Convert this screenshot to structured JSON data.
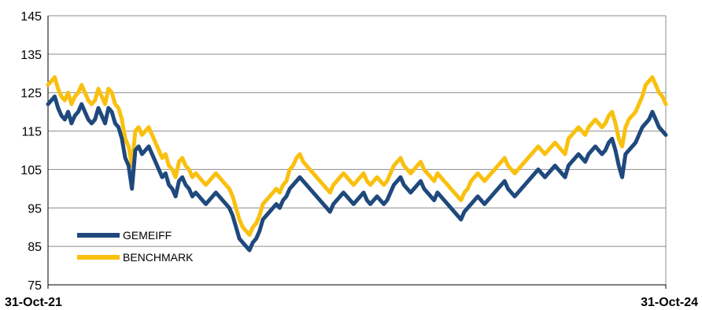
{
  "chart_data": {
    "type": "line",
    "x_start": "31-Oct-21",
    "x_end": "31-Oct-24",
    "x_tick_labels": [
      "31-Oct-21",
      "31-Oct-24"
    ],
    "ylim": [
      75,
      145
    ],
    "y_ticks": [
      75,
      85,
      95,
      105,
      115,
      125,
      135,
      145
    ],
    "grid": true,
    "legend_placement": "bottom-left",
    "series": [
      {
        "name": "GEMEIFF",
        "color": "#1f497d",
        "values": [
          122,
          123,
          124,
          121,
          119,
          118,
          120,
          117,
          119,
          120,
          122,
          120,
          118,
          117,
          118,
          121,
          119,
          117,
          121,
          120,
          117,
          116,
          113,
          108,
          106,
          100,
          110,
          111,
          109,
          110,
          111,
          109,
          107,
          105,
          103,
          104,
          101,
          100,
          98,
          102,
          103,
          101,
          100,
          98,
          99,
          98,
          97,
          96,
          97,
          98,
          99,
          98,
          97,
          96,
          95,
          93,
          90,
          87,
          86,
          85,
          84,
          86,
          87,
          89,
          92,
          93,
          94,
          95,
          96,
          95,
          97,
          98,
          100,
          101,
          102,
          103,
          102,
          101,
          100,
          99,
          98,
          97,
          96,
          95,
          94,
          96,
          97,
          98,
          99,
          98,
          97,
          96,
          97,
          98,
          99,
          97,
          96,
          97,
          98,
          97,
          96,
          97,
          99,
          101,
          102,
          103,
          101,
          100,
          99,
          100,
          101,
          102,
          100,
          99,
          98,
          97,
          99,
          98,
          97,
          96,
          95,
          94,
          93,
          92,
          94,
          95,
          96,
          97,
          98,
          97,
          96,
          97,
          98,
          99,
          100,
          101,
          102,
          100,
          99,
          98,
          99,
          100,
          101,
          102,
          103,
          104,
          105,
          104,
          103,
          104,
          105,
          106,
          105,
          104,
          103,
          106,
          107,
          108,
          109,
          108,
          107,
          109,
          110,
          111,
          110,
          109,
          110,
          112,
          113,
          110,
          106,
          103,
          109,
          110,
          111,
          112,
          114,
          116,
          117,
          118,
          120,
          118,
          116,
          115,
          114
        ]
      },
      {
        "name": "BENCHMARK",
        "color": "#f9c00f",
        "values": [
          127,
          128,
          129,
          126,
          124,
          123,
          125,
          122,
          124,
          125,
          127,
          125,
          123,
          122,
          123,
          126,
          124,
          122,
          126,
          125,
          122,
          121,
          118,
          113,
          111,
          106,
          115,
          116,
          114,
          115,
          116,
          114,
          112,
          110,
          108,
          109,
          106,
          105,
          103,
          107,
          108,
          106,
          105,
          103,
          104,
          103,
          102,
          101,
          102,
          103,
          104,
          103,
          102,
          101,
          100,
          98,
          95,
          92,
          90,
          89,
          88,
          90,
          91,
          93,
          96,
          97,
          98,
          99,
          100,
          99,
          101,
          102,
          105,
          106,
          108,
          109,
          107,
          106,
          105,
          104,
          103,
          102,
          101,
          100,
          99,
          101,
          102,
          103,
          104,
          103,
          102,
          101,
          102,
          103,
          104,
          102,
          101,
          102,
          103,
          102,
          101,
          102,
          104,
          106,
          107,
          108,
          106,
          105,
          104,
          105,
          106,
          107,
          105,
          104,
          103,
          102,
          104,
          103,
          102,
          101,
          100,
          99,
          98,
          97,
          99,
          100,
          102,
          103,
          104,
          103,
          102,
          103,
          104,
          105,
          106,
          107,
          108,
          106,
          105,
          104,
          105,
          106,
          107,
          108,
          109,
          110,
          111,
          110,
          109,
          110,
          111,
          112,
          111,
          110,
          109,
          113,
          114,
          115,
          116,
          115,
          114,
          116,
          117,
          118,
          117,
          116,
          117,
          119,
          120,
          117,
          113,
          111,
          116,
          118,
          119,
          120,
          122,
          124,
          127,
          128,
          129,
          127,
          125,
          124,
          122
        ]
      }
    ]
  }
}
